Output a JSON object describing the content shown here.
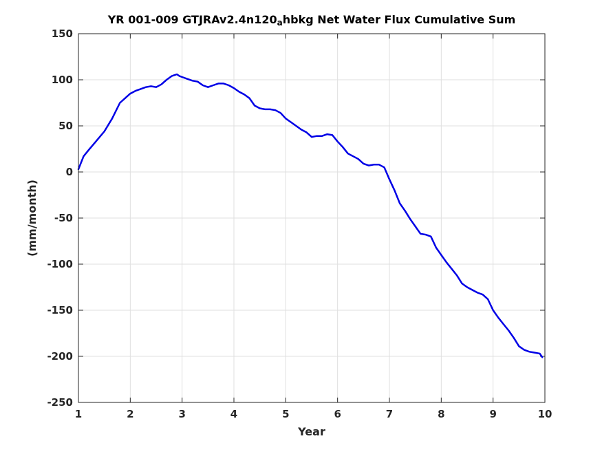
{
  "chart_data": {
    "type": "line",
    "title": "YR 001-009 GTJRAv2.4n120",
    "title_subscript": "a",
    "title_suffix": "hbkg Net Water Flux Cumulative Sum",
    "xlabel": "Year",
    "ylabel": "(mm/month)",
    "xlim": [
      1,
      10
    ],
    "ylim": [
      -250,
      150
    ],
    "xticks": [
      1,
      2,
      3,
      4,
      5,
      6,
      7,
      8,
      9,
      10
    ],
    "yticks": [
      150,
      100,
      50,
      0,
      -50,
      -100,
      -150,
      -200,
      -250
    ],
    "xtick_labels": [
      "1",
      "2",
      "3",
      "4",
      "5",
      "6",
      "7",
      "8",
      "9",
      "10"
    ],
    "ytick_labels": [
      "150",
      "100",
      "50",
      "0",
      "-50",
      "-100",
      "-150",
      "-200",
      "-250"
    ],
    "grid": true,
    "series": [
      {
        "color": "#0000e6",
        "x": [
          1.0,
          1.1,
          1.2,
          1.35,
          1.5,
          1.65,
          1.8,
          1.9,
          2.0,
          2.1,
          2.2,
          2.3,
          2.4,
          2.5,
          2.6,
          2.7,
          2.8,
          2.9,
          2.95,
          3.0,
          3.1,
          3.2,
          3.3,
          3.4,
          3.5,
          3.6,
          3.7,
          3.8,
          3.9,
          4.0,
          4.1,
          4.2,
          4.3,
          4.4,
          4.5,
          4.6,
          4.7,
          4.8,
          4.9,
          5.0,
          5.1,
          5.2,
          5.3,
          5.4,
          5.5,
          5.6,
          5.7,
          5.8,
          5.9,
          6.0,
          6.1,
          6.2,
          6.3,
          6.4,
          6.5,
          6.6,
          6.7,
          6.8,
          6.9,
          7.0,
          7.1,
          7.2,
          7.3,
          7.4,
          7.5,
          7.6,
          7.7,
          7.8,
          7.9,
          8.0,
          8.1,
          8.2,
          8.3,
          8.4,
          8.5,
          8.6,
          8.7,
          8.8,
          8.9,
          9.0,
          9.1,
          9.2,
          9.3,
          9.4,
          9.5,
          9.6,
          9.7,
          9.8,
          9.9,
          9.95
        ],
        "y": [
          3,
          17,
          24,
          34,
          44,
          58,
          75,
          80,
          85,
          88,
          90,
          92,
          93,
          92,
          95,
          100,
          104,
          106,
          104,
          103,
          101,
          99,
          98,
          94,
          92,
          94,
          96,
          96,
          94,
          91,
          87,
          84,
          80,
          72,
          69,
          68,
          68,
          67,
          64,
          58,
          54,
          50,
          46,
          43,
          38,
          39,
          39,
          41,
          40,
          33,
          27,
          20,
          17,
          14,
          9,
          7,
          8,
          8,
          5,
          -8,
          -20,
          -34,
          -42,
          -51,
          -59,
          -67,
          -68,
          -70,
          -82,
          -90,
          -98,
          -105,
          -112,
          -121,
          -125,
          -128,
          -131,
          -133,
          -138,
          -150,
          -158,
          -165,
          -172,
          -180,
          -189,
          -193,
          -195,
          -196,
          -197,
          -201
        ]
      }
    ]
  }
}
